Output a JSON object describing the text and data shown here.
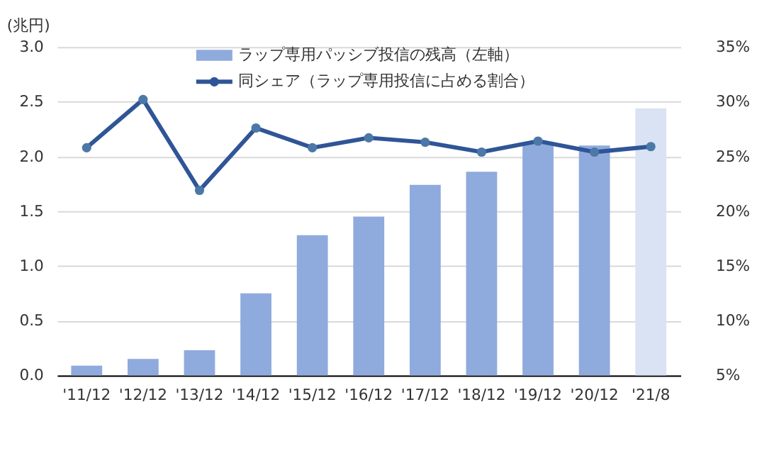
{
  "chart_data": {
    "type": "bar",
    "ylabel": "(兆円)",
    "categories": [
      "'11/12",
      "'12/12",
      "'13/12",
      "'14/12",
      "'15/12",
      "'16/12",
      "'17/12",
      "'18/12",
      "'19/12",
      "'20/12",
      "'21/8"
    ],
    "series": [
      {
        "name": "ラップ専用パッシブ投信の残高（左軸）",
        "color": "#8faadc",
        "colors": [
          "#8faadc",
          "#8faadc",
          "#8faadc",
          "#8faadc",
          "#8faadc",
          "#8faadc",
          "#8faadc",
          "#8faadc",
          "#8faadc",
          "#8faadc",
          "#dae3f3"
        ],
        "values": [
          0.09,
          0.15,
          0.23,
          0.75,
          1.28,
          1.45,
          1.74,
          1.86,
          2.13,
          2.1,
          2.44
        ]
      },
      {
        "name": "同シェア（ラップ専用投信に占める割合）",
        "type": "line",
        "axis": "y2",
        "color": "#2f5597",
        "marker": "circle",
        "values": [
          25.8,
          30.2,
          21.9,
          27.6,
          25.8,
          26.7,
          26.3,
          25.4,
          26.4,
          25.4,
          25.9
        ]
      }
    ],
    "ylim": [
      0,
      3.0
    ],
    "yticks": [
      {
        "value": 0,
        "label": "0.0"
      },
      0.5,
      {
        "value": 1,
        "label": "1.0"
      },
      1.5,
      {
        "value": 2,
        "label": "2.0"
      },
      2.5,
      {
        "value": 3,
        "label": "3.0"
      }
    ],
    "y2lim": [
      5,
      35
    ],
    "y2ticks": [
      {
        "value": 5,
        "label": "5%"
      },
      {
        "value": 10,
        "label": "10%"
      },
      {
        "value": 15,
        "label": "15%"
      },
      {
        "value": 20,
        "label": "20%"
      },
      {
        "value": 25,
        "label": "25%"
      },
      {
        "value": 30,
        "label": "30%"
      },
      {
        "value": 35,
        "label": "35%"
      }
    ],
    "grid": "y",
    "legend": "top"
  }
}
